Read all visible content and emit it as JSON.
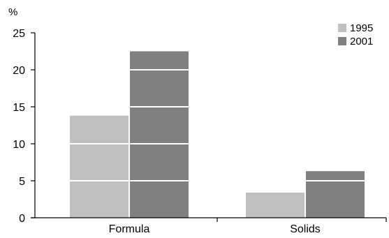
{
  "chart_data": {
    "type": "bar",
    "unit_label": "%",
    "categories": [
      "Formula",
      "Solids"
    ],
    "series": [
      {
        "name": "1995",
        "values": [
          13.8,
          3.4
        ],
        "color": "#c0c0c0"
      },
      {
        "name": "2001",
        "values": [
          22.5,
          6.3
        ],
        "color": "#808080"
      }
    ],
    "ylim": [
      0,
      25
    ],
    "yticks": [
      0,
      5,
      10,
      15,
      20,
      25
    ],
    "gridlines": "white, drawn across bars only",
    "legend_position": "top-right"
  }
}
